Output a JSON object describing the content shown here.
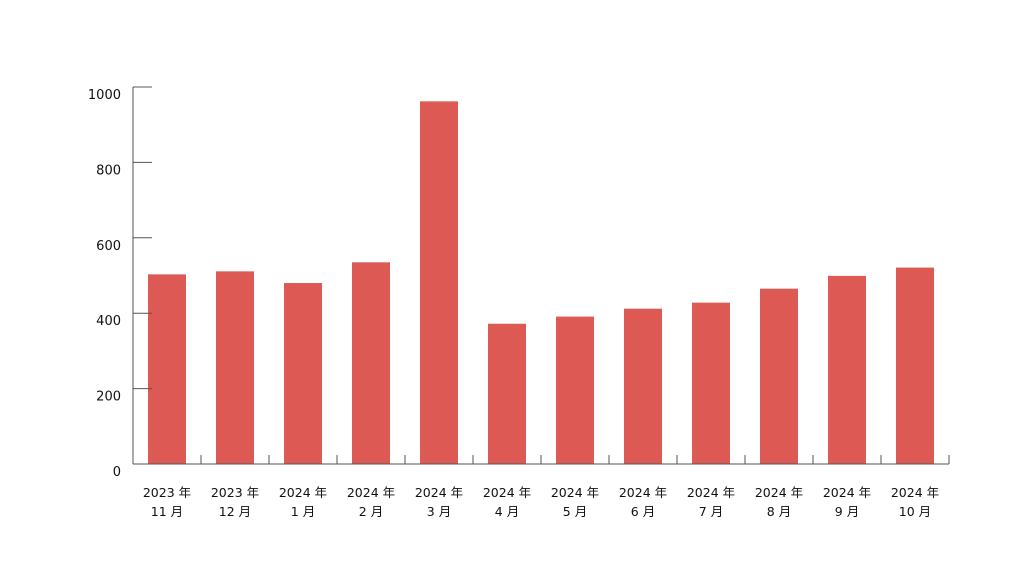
{
  "chart_data": {
    "type": "bar",
    "title": "",
    "xlabel": "",
    "ylabel": "",
    "categories": [
      [
        "2023 年",
        "11 月"
      ],
      [
        "2023 年",
        "12 月"
      ],
      [
        "2024 年",
        "1 月"
      ],
      [
        "2024 年",
        "2 月"
      ],
      [
        "2024 年",
        "3 月"
      ],
      [
        "2024 年",
        "4 月"
      ],
      [
        "2024 年",
        "5 月"
      ],
      [
        "2024 年",
        "6 月"
      ],
      [
        "2024 年",
        "7 月"
      ],
      [
        "2024 年",
        "8 月"
      ],
      [
        "2024 年",
        "9 月"
      ],
      [
        "2024 年",
        "10 月"
      ]
    ],
    "values": [
      503,
      511,
      480,
      535,
      962,
      372,
      391,
      412,
      428,
      465,
      499,
      521
    ],
    "ylim": [
      0,
      1000
    ],
    "yticks": [
      0,
      200,
      400,
      600,
      800,
      1000
    ],
    "bar_color": "#dd5a54",
    "grid": false,
    "legend": "none"
  }
}
